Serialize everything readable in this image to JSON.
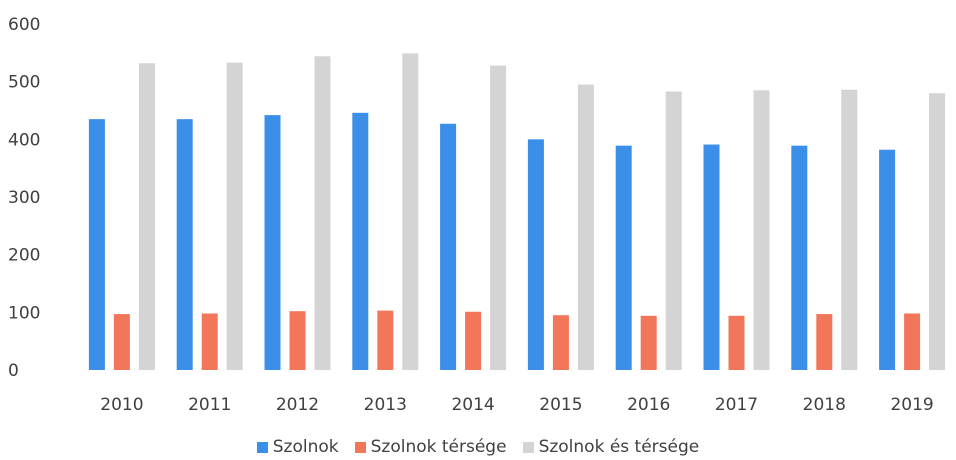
{
  "chart_data": {
    "type": "bar",
    "categories": [
      "2010",
      "2011",
      "2012",
      "2013",
      "2014",
      "2015",
      "2016",
      "2017",
      "2018",
      "2019"
    ],
    "series": [
      {
        "name": "Szolnok",
        "color": "#3b8fe8",
        "values": [
          435,
          435,
          442,
          446,
          427,
          400,
          389,
          391,
          389,
          382
        ]
      },
      {
        "name": "Szolnok térsége",
        "color": "#f2775a",
        "values": [
          97,
          98,
          102,
          103,
          101,
          95,
          94,
          94,
          97,
          98
        ]
      },
      {
        "name": "Szolnok és térsége",
        "color": "#d4d4d4",
        "values": [
          532,
          533,
          544,
          549,
          528,
          495,
          483,
          485,
          486,
          480
        ]
      }
    ],
    "y_ticks": [
      "0",
      "100",
      "200",
      "300",
      "400",
      "500",
      "600"
    ],
    "ylim": [
      0,
      600
    ],
    "grid": false,
    "legend_position": "bottom"
  }
}
